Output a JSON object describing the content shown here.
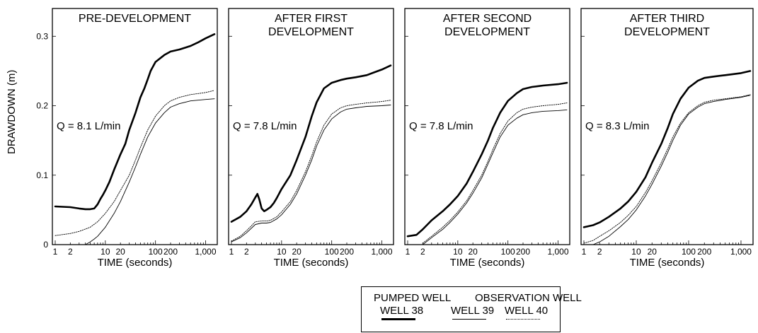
{
  "y_axis_label": "DRAWDOWN (m)",
  "chart_data": [
    {
      "type": "line",
      "title": "PRE-DEVELOPMENT",
      "annotation": "Q = 8.1 L/min",
      "xlabel": "TIME (seconds)",
      "ylabel": "DRAWDOWN (m)",
      "x_scale": "log",
      "xlim": [
        1,
        1500
      ],
      "ylim": [
        0,
        0.34
      ],
      "x_ticks": [
        "1",
        "2",
        "10",
        "20",
        "100",
        "200",
        "1,000"
      ],
      "y_ticks": [
        "0",
        "0.1",
        "0.2",
        "0.3"
      ],
      "series": [
        {
          "name": "WELL 38",
          "x": [
            1,
            2,
            3,
            4,
            5,
            6,
            7,
            8,
            9,
            10,
            12,
            15,
            20,
            25,
            30,
            40,
            50,
            60,
            70,
            80,
            100,
            150,
            200,
            300,
            500,
            700,
            1000,
            1500
          ],
          "y": [
            0.055,
            0.054,
            0.052,
            0.051,
            0.051,
            0.052,
            0.058,
            0.066,
            0.072,
            0.078,
            0.09,
            0.108,
            0.13,
            0.145,
            0.165,
            0.19,
            0.212,
            0.225,
            0.238,
            0.25,
            0.263,
            0.273,
            0.278,
            0.281,
            0.286,
            0.291,
            0.297,
            0.303
          ]
        },
        {
          "name": "WELL 39",
          "x": [
            1,
            2,
            3,
            5,
            7,
            10,
            15,
            20,
            30,
            40,
            50,
            70,
            100,
            150,
            200,
            300,
            500,
            1000,
            1500
          ],
          "y": [
            0.013,
            0.016,
            0.019,
            0.025,
            0.033,
            0.045,
            0.062,
            0.078,
            0.1,
            0.122,
            0.14,
            0.165,
            0.185,
            0.2,
            0.207,
            0.212,
            0.216,
            0.219,
            0.222
          ]
        },
        {
          "name": "WELL 40",
          "x": [
            4,
            5,
            6,
            7,
            10,
            15,
            20,
            30,
            40,
            50,
            70,
            100,
            150,
            200,
            300,
            500,
            1000,
            1500
          ],
          "y": [
            0.0,
            0.004,
            0.008,
            0.012,
            0.025,
            0.045,
            0.062,
            0.09,
            0.112,
            0.13,
            0.155,
            0.175,
            0.19,
            0.198,
            0.203,
            0.207,
            0.209,
            0.21
          ]
        }
      ]
    },
    {
      "type": "line",
      "title": "AFTER FIRST DEVELOPMENT",
      "annotation": "Q = 7.8 L/min",
      "xlabel": "TIME (seconds)",
      "x_scale": "log",
      "xlim": [
        1,
        1500
      ],
      "ylim": [
        0,
        0.34
      ],
      "x_ticks": [
        "1",
        "2",
        "10",
        "20",
        "100",
        "200",
        "1,000"
      ],
      "series": [
        {
          "name": "WELL 38",
          "x": [
            1,
            1.5,
            2,
            2.5,
            3,
            3.3,
            3.6,
            4,
            4.5,
            5,
            6,
            7,
            8,
            10,
            15,
            20,
            30,
            40,
            50,
            70,
            100,
            150,
            200,
            300,
            500,
            700,
            1000,
            1500
          ],
          "y": [
            0.033,
            0.04,
            0.048,
            0.058,
            0.068,
            0.073,
            0.065,
            0.052,
            0.048,
            0.05,
            0.054,
            0.06,
            0.067,
            0.08,
            0.1,
            0.122,
            0.155,
            0.185,
            0.205,
            0.225,
            0.233,
            0.237,
            0.239,
            0.241,
            0.244,
            0.248,
            0.252,
            0.258
          ]
        },
        {
          "name": "WELL 39",
          "x": [
            1,
            1.5,
            2,
            3,
            4,
            5,
            6,
            8,
            10,
            15,
            20,
            30,
            40,
            50,
            70,
            100,
            150,
            200,
            300,
            500,
            1000,
            1500
          ],
          "y": [
            0.005,
            0.012,
            0.02,
            0.033,
            0.034,
            0.034,
            0.035,
            0.04,
            0.047,
            0.062,
            0.078,
            0.105,
            0.128,
            0.148,
            0.172,
            0.188,
            0.197,
            0.2,
            0.202,
            0.204,
            0.206,
            0.208
          ]
        },
        {
          "name": "WELL 40",
          "x": [
            1,
            1.5,
            2,
            3,
            4,
            5,
            6,
            8,
            10,
            15,
            20,
            30,
            40,
            50,
            70,
            100,
            150,
            200,
            300,
            500,
            1000,
            1500
          ],
          "y": [
            0.004,
            0.01,
            0.017,
            0.029,
            0.031,
            0.031,
            0.032,
            0.037,
            0.043,
            0.058,
            0.073,
            0.1,
            0.122,
            0.142,
            0.165,
            0.181,
            0.191,
            0.195,
            0.197,
            0.199,
            0.2,
            0.201
          ]
        }
      ]
    },
    {
      "type": "line",
      "title": "AFTER SECOND DEVELOPMENT",
      "annotation": "Q = 7.8 L/min",
      "xlabel": "TIME (seconds)",
      "x_scale": "log",
      "xlim": [
        1,
        1500
      ],
      "ylim": [
        0,
        0.34
      ],
      "x_ticks": [
        "1",
        "2",
        "10",
        "20",
        "100",
        "200",
        "1,000"
      ],
      "series": [
        {
          "name": "WELL 38",
          "x": [
            1,
            1.5,
            2,
            3,
            5,
            7,
            10,
            15,
            20,
            30,
            40,
            50,
            70,
            100,
            150,
            200,
            300,
            500,
            1000,
            1500
          ],
          "y": [
            0.012,
            0.014,
            0.022,
            0.035,
            0.048,
            0.058,
            0.07,
            0.088,
            0.105,
            0.13,
            0.15,
            0.168,
            0.19,
            0.207,
            0.218,
            0.224,
            0.227,
            0.229,
            0.231,
            0.233
          ]
        },
        {
          "name": "WELL 39",
          "x": [
            2,
            3,
            5,
            7,
            10,
            15,
            20,
            30,
            40,
            50,
            70,
            100,
            150,
            200,
            300,
            500,
            1000,
            1500
          ],
          "y": [
            0.002,
            0.012,
            0.025,
            0.035,
            0.047,
            0.063,
            0.078,
            0.1,
            0.12,
            0.137,
            0.16,
            0.178,
            0.19,
            0.195,
            0.198,
            0.2,
            0.202,
            0.204
          ]
        },
        {
          "name": "WELL 40",
          "x": [
            2,
            3,
            5,
            7,
            10,
            15,
            20,
            30,
            40,
            50,
            70,
            100,
            150,
            200,
            300,
            500,
            1000,
            1500
          ],
          "y": [
            0.0,
            0.01,
            0.022,
            0.032,
            0.044,
            0.06,
            0.074,
            0.096,
            0.116,
            0.132,
            0.155,
            0.172,
            0.182,
            0.187,
            0.19,
            0.192,
            0.193,
            0.194
          ]
        }
      ]
    },
    {
      "type": "line",
      "title": "AFTER THIRD DEVELOPMENT",
      "annotation": "Q = 8.3 L/min",
      "xlabel": "TIME (seconds)",
      "x_scale": "log",
      "xlim": [
        1,
        1500
      ],
      "ylim": [
        0,
        0.34
      ],
      "x_ticks": [
        "1",
        "2",
        "10",
        "20",
        "100",
        "200",
        "1,000"
      ],
      "series": [
        {
          "name": "WELL 38",
          "x": [
            1,
            1.5,
            2,
            3,
            5,
            7,
            10,
            15,
            20,
            30,
            40,
            50,
            70,
            100,
            150,
            200,
            300,
            500,
            1000,
            1500
          ],
          "y": [
            0.025,
            0.028,
            0.032,
            0.04,
            0.052,
            0.062,
            0.076,
            0.097,
            0.118,
            0.145,
            0.168,
            0.188,
            0.21,
            0.226,
            0.236,
            0.24,
            0.242,
            0.244,
            0.247,
            0.25
          ]
        },
        {
          "name": "WELL 39",
          "x": [
            1,
            1.5,
            2,
            3,
            5,
            7,
            10,
            15,
            20,
            30,
            40,
            50,
            70,
            100,
            150,
            200,
            300,
            500,
            1000,
            1500
          ],
          "y": [
            0.002,
            0.006,
            0.012,
            0.02,
            0.032,
            0.042,
            0.055,
            0.075,
            0.092,
            0.118,
            0.138,
            0.155,
            0.175,
            0.19,
            0.2,
            0.205,
            0.208,
            0.21,
            0.213,
            0.216
          ]
        },
        {
          "name": "WELL 40",
          "x": [
            1.5,
            2,
            3,
            5,
            7,
            10,
            15,
            20,
            30,
            40,
            50,
            70,
            100,
            150,
            200,
            300,
            500,
            1000,
            1500
          ],
          "y": [
            0.0,
            0.004,
            0.012,
            0.026,
            0.036,
            0.05,
            0.07,
            0.087,
            0.113,
            0.133,
            0.15,
            0.172,
            0.188,
            0.198,
            0.203,
            0.206,
            0.209,
            0.212,
            0.215
          ]
        }
      ]
    }
  ],
  "legend": {
    "pumped_heading": "PUMPED WELL",
    "observation_heading": "OBSERVATION WELL",
    "items": [
      {
        "label": "WELL 38",
        "style": "thick solid"
      },
      {
        "label": "WELL 39",
        "style": "thin solid"
      },
      {
        "label": "WELL 40",
        "style": "dotted"
      }
    ]
  }
}
